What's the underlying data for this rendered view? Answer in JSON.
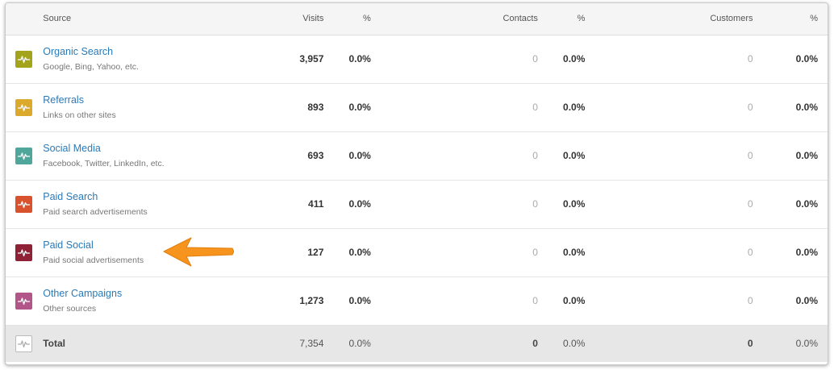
{
  "header": {
    "source": "Source",
    "visits": "Visits",
    "visits_pct": "%",
    "contacts": "Contacts",
    "contacts_pct": "%",
    "customers": "Customers",
    "customers_pct": "%"
  },
  "rows": [
    {
      "name": "Organic Search",
      "desc": "Google, Bing, Yahoo, etc.",
      "visits": "3,957",
      "visits_pct": "0.0%",
      "contacts": "0",
      "contacts_pct": "0.0%",
      "customers": "0",
      "customers_pct": "0.0%",
      "icon": "activity-icon",
      "color": "#a3a41c"
    },
    {
      "name": "Referrals",
      "desc": "Links on other sites",
      "visits": "893",
      "visits_pct": "0.0%",
      "contacts": "0",
      "contacts_pct": "0.0%",
      "customers": "0",
      "customers_pct": "0.0%",
      "icon": "activity-icon",
      "color": "#dba92b"
    },
    {
      "name": "Social Media",
      "desc": "Facebook, Twitter, LinkedIn, etc.",
      "visits": "693",
      "visits_pct": "0.0%",
      "contacts": "0",
      "contacts_pct": "0.0%",
      "customers": "0",
      "customers_pct": "0.0%",
      "icon": "activity-icon",
      "color": "#4fa69b"
    },
    {
      "name": "Paid Search",
      "desc": "Paid search advertisements",
      "visits": "411",
      "visits_pct": "0.0%",
      "contacts": "0",
      "contacts_pct": "0.0%",
      "customers": "0",
      "customers_pct": "0.0%",
      "icon": "activity-icon",
      "color": "#d9522e"
    },
    {
      "name": "Paid Social",
      "desc": "Paid social advertisements",
      "visits": "127",
      "visits_pct": "0.0%",
      "contacts": "0",
      "contacts_pct": "0.0%",
      "customers": "0",
      "customers_pct": "0.0%",
      "icon": "activity-icon",
      "color": "#8e2135"
    },
    {
      "name": "Other Campaigns",
      "desc": "Other sources",
      "visits": "1,273",
      "visits_pct": "0.0%",
      "contacts": "0",
      "contacts_pct": "0.0%",
      "customers": "0",
      "customers_pct": "0.0%",
      "icon": "activity-icon",
      "color": "#b25588"
    }
  ],
  "total": {
    "label": "Total",
    "visits": "7,354",
    "visits_pct": "0.0%",
    "contacts": "0",
    "contacts_pct": "0.0%",
    "customers": "0",
    "customers_pct": "0.0%",
    "icon": "activity-icon"
  },
  "colors": {
    "link": "#2a7ab8",
    "arrow": "#f7941d",
    "header_bg": "#f5f5f5",
    "total_bg": "#e7e7e7"
  },
  "annotation": {
    "icon": "arrow-left-icon"
  }
}
